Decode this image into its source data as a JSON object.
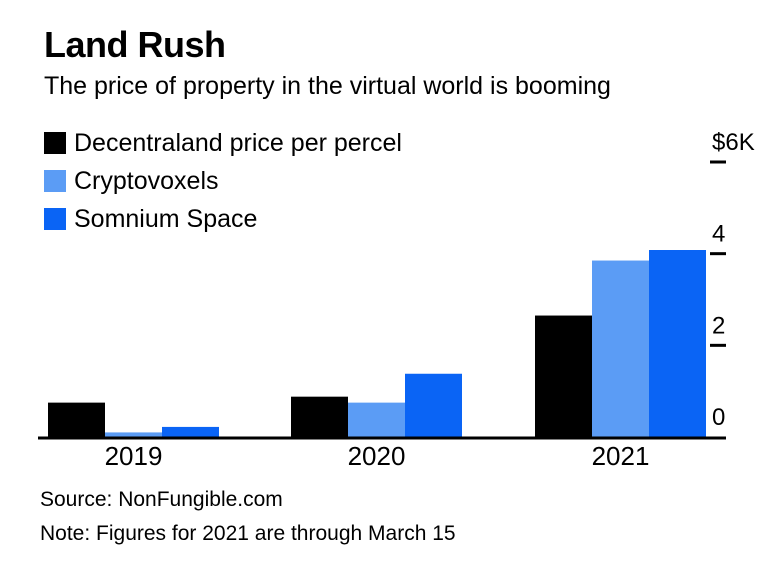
{
  "title": "Land Rush",
  "subtitle": "The price of property in the virtual world is booming",
  "legend": [
    {
      "label": "Decentraland price per percel",
      "color": "#000000"
    },
    {
      "label": "Cryptovoxels",
      "color": "#5b9cf5"
    },
    {
      "label": "Somnium Space",
      "color": "#0a64f5"
    }
  ],
  "footer": {
    "source": "Source: NonFungible.com",
    "note": "Note: Figures for 2021 are through March 15"
  },
  "chart_data": {
    "type": "bar",
    "categories": [
      "2019",
      "2020",
      "2021"
    ],
    "series": [
      {
        "name": "Decentraland price per percel",
        "color": "#000000",
        "values": [
          0.75,
          0.88,
          2.65
        ]
      },
      {
        "name": "Cryptovoxels",
        "color": "#5b9cf5",
        "values": [
          0.1,
          0.75,
          3.85
        ]
      },
      {
        "name": "Somnium Space",
        "color": "#0a64f5",
        "values": [
          0.22,
          1.38,
          4.08
        ]
      }
    ],
    "y_ticks": [
      {
        "value": 0,
        "label": "0"
      },
      {
        "value": 2,
        "label": "2"
      },
      {
        "value": 4,
        "label": "4"
      },
      {
        "value": 6,
        "label": "$6K"
      }
    ],
    "ylim": [
      0,
      6
    ],
    "grid": false,
    "axis_side": "right",
    "legend_position": "top-left"
  }
}
